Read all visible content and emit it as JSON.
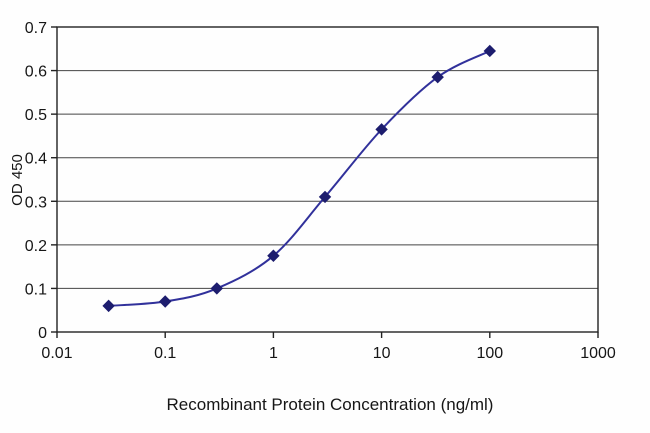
{
  "chart_data": {
    "type": "line",
    "title": "",
    "xlabel": "Recombinant Protein Concentration (ng/ml)",
    "ylabel": "OD 450",
    "xscale": "log",
    "xlim": [
      0.01,
      1000
    ],
    "ylim": [
      0,
      0.7
    ],
    "x": [
      0.03,
      0.1,
      0.3,
      1,
      3,
      10,
      33,
      100
    ],
    "y": [
      0.06,
      0.07,
      0.1,
      0.175,
      0.31,
      0.465,
      0.585,
      0.645
    ],
    "x_tick_labels": [
      "0.01",
      "0.1",
      "1",
      "10",
      "100",
      "1000"
    ],
    "x_tick_values": [
      0.01,
      0.1,
      1,
      10,
      100,
      1000
    ],
    "y_tick_labels": [
      "0",
      "0.1",
      "0.2",
      "0.3",
      "0.4",
      "0.5",
      "0.6",
      "0.7"
    ],
    "y_tick_values": [
      0,
      0.1,
      0.2,
      0.3,
      0.4,
      0.5,
      0.6,
      0.7
    ],
    "grid": "horizontal",
    "legend": "none",
    "line_color": "#31319b",
    "marker": "diamond",
    "marker_color": "#1d1d6e",
    "axis_color": "#222222",
    "grid_color": "#444444"
  }
}
